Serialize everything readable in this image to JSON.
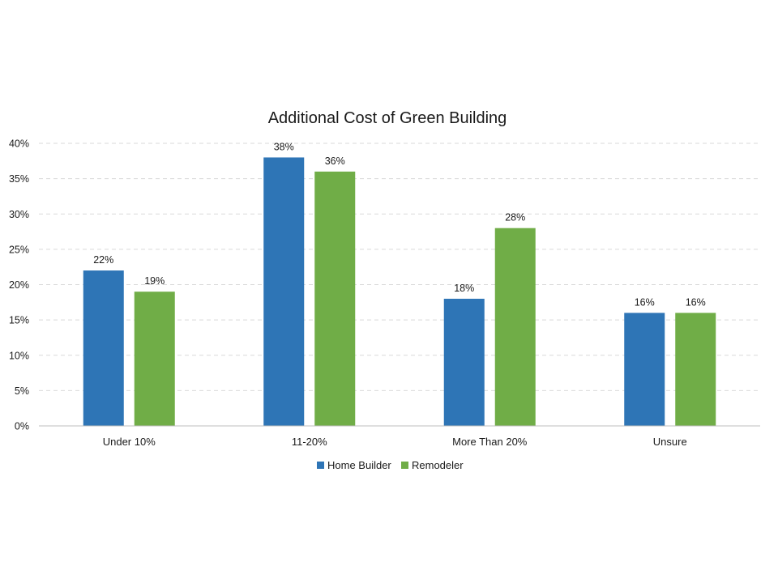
{
  "chart_data": {
    "type": "bar",
    "title": "Additional Cost of Green Building",
    "categories": [
      "Under 10%",
      "11-20%",
      "More Than 20%",
      "Unsure"
    ],
    "series": [
      {
        "name": "Home Builder",
        "values": [
          22,
          38,
          18,
          16
        ],
        "color": "#2E75B6"
      },
      {
        "name": "Remodeler",
        "values": [
          19,
          36,
          28,
          16
        ],
        "color": "#70AD47"
      }
    ],
    "value_format": "percent",
    "ylim": [
      0,
      40
    ],
    "yticks": [
      0,
      5,
      10,
      15,
      20,
      25,
      30,
      35,
      40
    ],
    "ytick_labels": [
      "0%",
      "5%",
      "10%",
      "15%",
      "20%",
      "25%",
      "30%",
      "35%",
      "40%"
    ],
    "data_labels": [
      [
        "22%",
        "38%",
        "18%",
        "16%"
      ],
      [
        "19%",
        "36%",
        "28%",
        "16%"
      ]
    ],
    "grid": true,
    "legend_position": "bottom",
    "xlabel": "",
    "ylabel": ""
  }
}
